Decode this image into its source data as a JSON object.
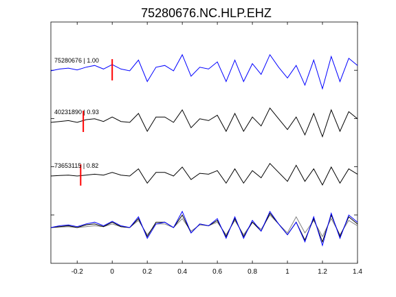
{
  "chart_data": {
    "type": "line",
    "title": "75280676.NC.HLP.EHZ",
    "xlim": [
      -0.35,
      1.4
    ],
    "x_ticks": [
      -0.2,
      0,
      0.2,
      0.4,
      0.6,
      0.8,
      1,
      1.2,
      1.4
    ],
    "x_tick_labels": [
      "-0.2",
      "0",
      "0.2",
      "0.4",
      "0.6",
      "0.8",
      "1",
      "1.2",
      "1.4"
    ],
    "grid": false,
    "colors": {
      "primary": "#0000ff",
      "secondary": "#000000",
      "secondary_overlay": "#808080",
      "pick": "#ff0000"
    },
    "traces": [
      {
        "label": "75280676 | 1.00",
        "color": "#0000ff",
        "pick_x": 0.0,
        "x": [
          -0.35,
          -0.3,
          -0.25,
          -0.2,
          -0.15,
          -0.1,
          -0.05,
          0,
          0.05,
          0.1,
          0.15,
          0.2,
          0.25,
          0.3,
          0.35,
          0.4,
          0.45,
          0.5,
          0.55,
          0.6,
          0.65,
          0.7,
          0.75,
          0.8,
          0.85,
          0.9,
          0.95,
          1,
          1.05,
          1.1,
          1.15,
          1.2,
          1.25,
          1.3,
          1.35,
          1.4
        ],
        "y": [
          0.0,
          0.1,
          0.15,
          0.05,
          0.2,
          0.3,
          0.1,
          0.35,
          0.1,
          0.0,
          0.6,
          -0.6,
          0.2,
          0.3,
          0.0,
          0.9,
          -0.3,
          0.2,
          0.1,
          0.5,
          -0.6,
          0.6,
          -0.6,
          0.4,
          -0.2,
          0.9,
          0.2,
          -0.4,
          0.3,
          -0.8,
          0.6,
          -1.0,
          0.8,
          -0.6,
          0.7,
          0.3
        ]
      },
      {
        "label": "40231890 | 0.93",
        "color": "#000000",
        "pick_x": -0.165,
        "x": [
          -0.35,
          -0.3,
          -0.25,
          -0.2,
          -0.15,
          -0.1,
          -0.05,
          0,
          0.05,
          0.1,
          0.15,
          0.2,
          0.25,
          0.3,
          0.35,
          0.4,
          0.45,
          0.5,
          0.55,
          0.6,
          0.65,
          0.7,
          0.75,
          0.8,
          0.85,
          0.9,
          0.95,
          1,
          1.05,
          1.1,
          1.15,
          1.2,
          1.25,
          1.3,
          1.35,
          1.4
        ],
        "y": [
          0.0,
          0.05,
          0.1,
          0.0,
          0.15,
          0.2,
          0.05,
          0.3,
          0.05,
          0.0,
          0.5,
          -0.5,
          0.3,
          0.3,
          0.0,
          0.7,
          -0.3,
          0.2,
          0.1,
          0.4,
          -0.5,
          0.5,
          -0.5,
          0.3,
          -0.2,
          0.8,
          0.2,
          -0.4,
          0.3,
          -0.7,
          0.5,
          -0.8,
          0.7,
          -0.5,
          0.6,
          0.2
        ]
      },
      {
        "label": "73653115 | 0.82",
        "color": "#000000",
        "pick_x": -0.18,
        "x": [
          -0.35,
          -0.3,
          -0.25,
          -0.2,
          -0.15,
          -0.1,
          -0.05,
          0,
          0.05,
          0.1,
          0.15,
          0.2,
          0.25,
          0.3,
          0.35,
          0.4,
          0.45,
          0.5,
          0.55,
          0.6,
          0.65,
          0.7,
          0.75,
          0.8,
          0.85,
          0.9,
          0.95,
          1,
          1.05,
          1.1,
          1.15,
          1.2,
          1.25,
          1.3,
          1.35,
          1.4
        ],
        "y": [
          0.0,
          0.03,
          0.05,
          0.0,
          0.05,
          0.1,
          0.05,
          0.2,
          0.05,
          0.0,
          0.4,
          -0.4,
          0.2,
          0.2,
          0.0,
          0.5,
          -0.2,
          0.15,
          0.1,
          0.3,
          -0.4,
          0.4,
          -0.4,
          0.3,
          -0.1,
          0.7,
          0.2,
          -0.3,
          0.6,
          -0.3,
          0.4,
          -0.5,
          0.5,
          -0.4,
          0.4,
          0.1
        ]
      }
    ],
    "overlay": {
      "x": [
        -0.35,
        -0.3,
        -0.25,
        -0.2,
        -0.15,
        -0.1,
        -0.05,
        0,
        0.05,
        0.1,
        0.15,
        0.2,
        0.25,
        0.3,
        0.35,
        0.4,
        0.45,
        0.5,
        0.55,
        0.6,
        0.65,
        0.7,
        0.75,
        0.8,
        0.85,
        0.9,
        0.95,
        1,
        1.05,
        1.1,
        1.15,
        1.2,
        1.25,
        1.3,
        1.35,
        1.4
      ],
      "series": [
        {
          "color": "#0000ff",
          "y": [
            0.0,
            0.1,
            0.15,
            0.05,
            0.2,
            0.3,
            0.1,
            0.35,
            0.1,
            0.0,
            0.6,
            -0.6,
            0.2,
            0.3,
            0.0,
            0.9,
            -0.3,
            0.2,
            0.1,
            0.5,
            -0.6,
            0.6,
            -0.6,
            0.4,
            -0.2,
            0.9,
            0.2,
            -0.4,
            0.3,
            -0.8,
            0.6,
            -1.0,
            0.8,
            -0.6,
            0.7,
            0.3
          ]
        },
        {
          "color": "#000000",
          "y": [
            0.0,
            0.05,
            0.1,
            0.0,
            0.15,
            0.2,
            0.05,
            0.3,
            0.05,
            0.0,
            0.5,
            -0.5,
            0.3,
            0.3,
            0.0,
            0.7,
            -0.3,
            0.2,
            0.1,
            0.4,
            -0.5,
            0.5,
            -0.5,
            0.3,
            -0.2,
            0.8,
            0.2,
            -0.4,
            0.3,
            -0.7,
            0.5,
            -0.8,
            0.7,
            -0.5,
            0.6,
            0.2
          ]
        },
        {
          "color": "#808080",
          "y": [
            0.0,
            0.03,
            0.05,
            0.0,
            0.05,
            0.1,
            0.05,
            0.2,
            0.05,
            0.0,
            0.4,
            -0.4,
            0.2,
            0.2,
            0.0,
            0.5,
            -0.2,
            0.15,
            0.1,
            0.3,
            -0.4,
            0.4,
            -0.4,
            0.3,
            -0.1,
            0.7,
            0.2,
            -0.3,
            0.6,
            -0.3,
            0.4,
            -0.5,
            0.5,
            -0.4,
            0.4,
            0.1
          ]
        }
      ]
    }
  }
}
